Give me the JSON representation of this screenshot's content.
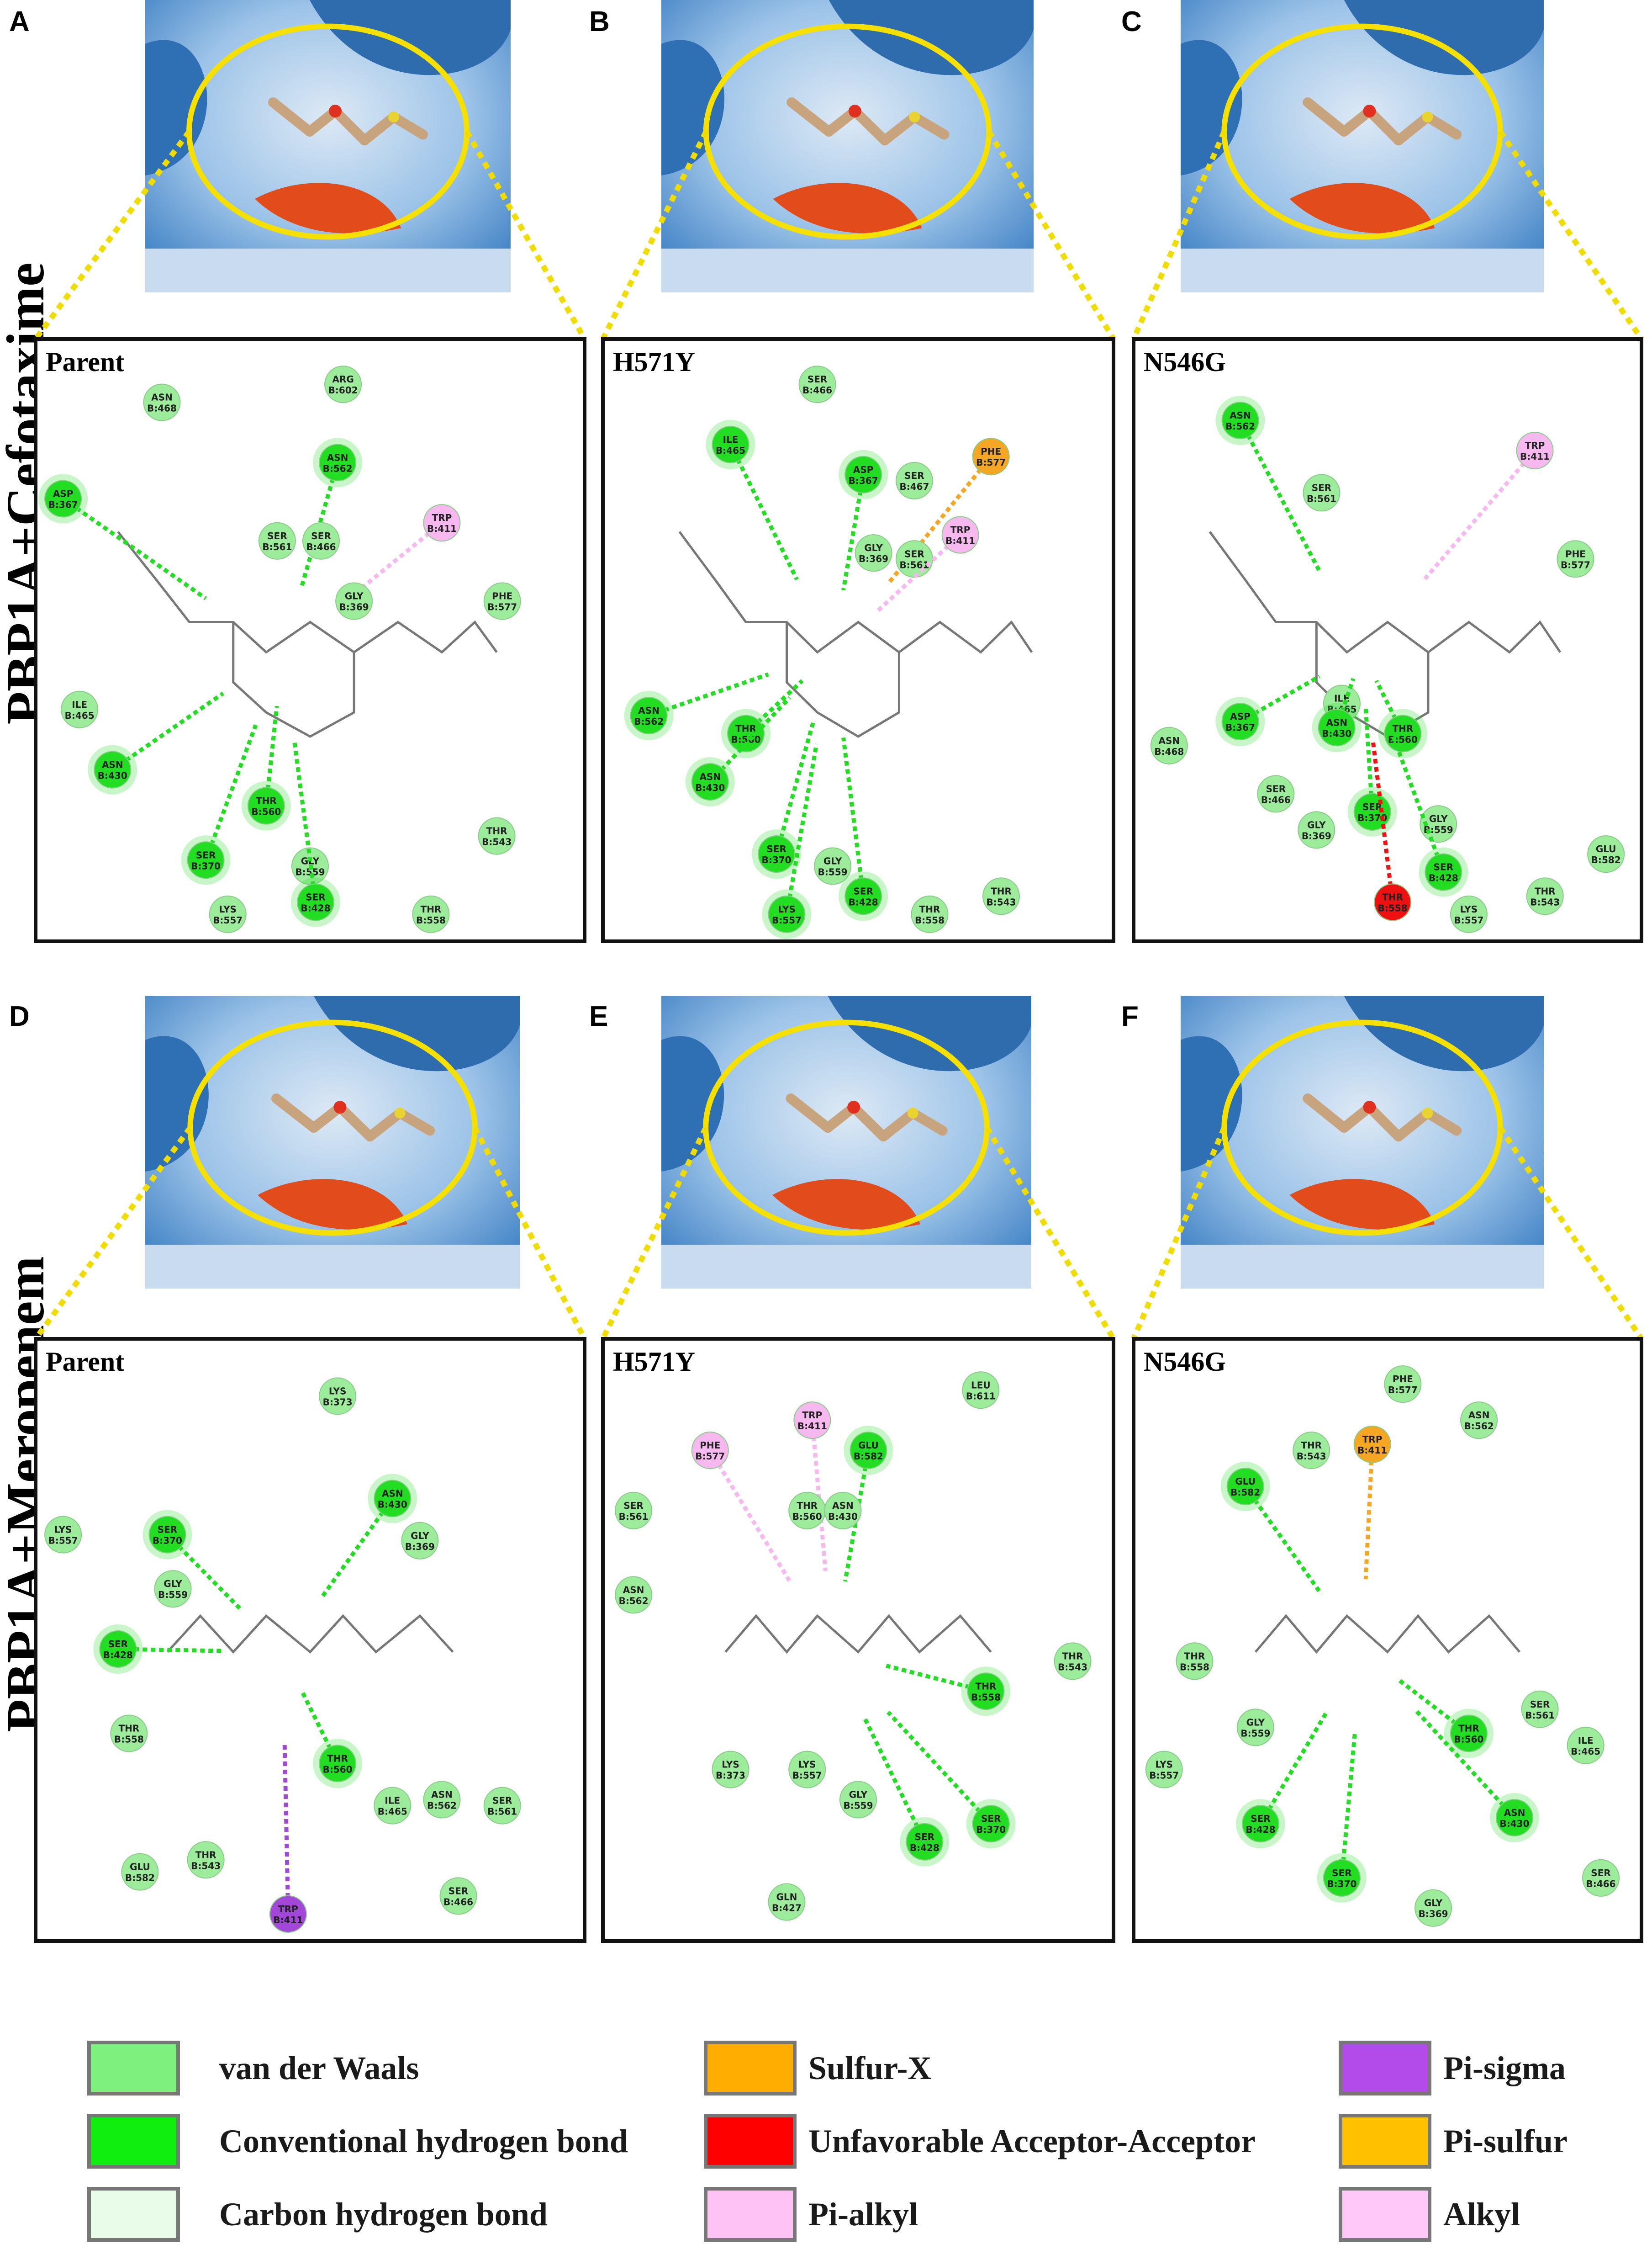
{
  "row_titles": [
    "PBP1A+Cefotaxime",
    "PBP1A+Meropenem"
  ],
  "panels": [
    {
      "letter": "A",
      "title": "Parent",
      "residues": [
        {
          "name": "ARG",
          "num": "B:602",
          "type": "vdw"
        },
        {
          "name": "ASN",
          "num": "B:468",
          "type": "vdw"
        },
        {
          "name": "ASN",
          "num": "B:562",
          "type": "hbond"
        },
        {
          "name": "ASP",
          "num": "B:367",
          "type": "hbond"
        },
        {
          "name": "SER",
          "num": "B:561",
          "type": "vdw"
        },
        {
          "name": "SER",
          "num": "B:466",
          "type": "vdw"
        },
        {
          "name": "TRP",
          "num": "B:411",
          "type": "pialkyl"
        },
        {
          "name": "GLY",
          "num": "B:369",
          "type": "vdw"
        },
        {
          "name": "PHE",
          "num": "B:577",
          "type": "vdw"
        },
        {
          "name": "ILE",
          "num": "B:465",
          "type": "vdw"
        },
        {
          "name": "ASN",
          "num": "B:430",
          "type": "hbond"
        },
        {
          "name": "THR",
          "num": "B:560",
          "type": "hbond"
        },
        {
          "name": "SER",
          "num": "B:370",
          "type": "hbond"
        },
        {
          "name": "GLY",
          "num": "B:559",
          "type": "vdw"
        },
        {
          "name": "SER",
          "num": "B:428",
          "type": "hbond"
        },
        {
          "name": "THR",
          "num": "B:543",
          "type": "vdw"
        },
        {
          "name": "THR",
          "num": "B:558",
          "type": "vdw"
        },
        {
          "name": "LYS",
          "num": "B:557",
          "type": "vdw"
        }
      ]
    },
    {
      "letter": "B",
      "title": "H571Y",
      "residues": [
        {
          "name": "SER",
          "num": "B:466",
          "type": "vdw"
        },
        {
          "name": "ILE",
          "num": "B:465",
          "type": "hbond"
        },
        {
          "name": "ASP",
          "num": "B:367",
          "type": "hbond"
        },
        {
          "name": "SER",
          "num": "B:467",
          "type": "vdw"
        },
        {
          "name": "PHE",
          "num": "B:577",
          "type": "sulfur"
        },
        {
          "name": "GLY",
          "num": "B:369",
          "type": "vdw"
        },
        {
          "name": "SER",
          "num": "B:561",
          "type": "vdw"
        },
        {
          "name": "TRP",
          "num": "B:411",
          "type": "pialkyl"
        },
        {
          "name": "ASN",
          "num": "B:562",
          "type": "hbond"
        },
        {
          "name": "THR",
          "num": "B:560",
          "type": "hbond"
        },
        {
          "name": "ASN",
          "num": "B:430",
          "type": "hbond"
        },
        {
          "name": "SER",
          "num": "B:370",
          "type": "hbond"
        },
        {
          "name": "GLY",
          "num": "B:559",
          "type": "vdw"
        },
        {
          "name": "SER",
          "num": "B:428",
          "type": "hbond"
        },
        {
          "name": "LYS",
          "num": "B:557",
          "type": "hbond"
        },
        {
          "name": "THR",
          "num": "B:558",
          "type": "vdw"
        },
        {
          "name": "THR",
          "num": "B:543",
          "type": "vdw"
        }
      ]
    },
    {
      "letter": "C",
      "title": "N546G",
      "residues": [
        {
          "name": "ASN",
          "num": "B:562",
          "type": "hbond"
        },
        {
          "name": "SER",
          "num": "B:561",
          "type": "vdw"
        },
        {
          "name": "TRP",
          "num": "B:411",
          "type": "pialkyl"
        },
        {
          "name": "PHE",
          "num": "B:577",
          "type": "vdw"
        },
        {
          "name": "ASP",
          "num": "B:367",
          "type": "hbond"
        },
        {
          "name": "ASN",
          "num": "B:468",
          "type": "vdw"
        },
        {
          "name": "ILE",
          "num": "B:465",
          "type": "vdw"
        },
        {
          "name": "ASN",
          "num": "B:430",
          "type": "hbond"
        },
        {
          "name": "THR",
          "num": "B:560",
          "type": "hbond"
        },
        {
          "name": "SER",
          "num": "B:466",
          "type": "vdw"
        },
        {
          "name": "GLY",
          "num": "B:369",
          "type": "vdw"
        },
        {
          "name": "SER",
          "num": "B:370",
          "type": "hbond"
        },
        {
          "name": "GLY",
          "num": "B:559",
          "type": "vdw"
        },
        {
          "name": "SER",
          "num": "B:428",
          "type": "hbond"
        },
        {
          "name": "GLU",
          "num": "B:582",
          "type": "vdw"
        },
        {
          "name": "THR",
          "num": "B:558",
          "type": "unfav"
        },
        {
          "name": "THR",
          "num": "B:543",
          "type": "vdw"
        },
        {
          "name": "LYS",
          "num": "B:557",
          "type": "vdw"
        }
      ]
    },
    {
      "letter": "D",
      "title": "Parent",
      "residues": [
        {
          "name": "LYS",
          "num": "B:373",
          "type": "vdw"
        },
        {
          "name": "ASN",
          "num": "B:430",
          "type": "hbond"
        },
        {
          "name": "LYS",
          "num": "B:557",
          "type": "vdw"
        },
        {
          "name": "SER",
          "num": "B:370",
          "type": "hbond"
        },
        {
          "name": "GLY",
          "num": "B:369",
          "type": "vdw"
        },
        {
          "name": "GLY",
          "num": "B:559",
          "type": "vdw"
        },
        {
          "name": "SER",
          "num": "B:428",
          "type": "hbond"
        },
        {
          "name": "THR",
          "num": "B:558",
          "type": "vdw"
        },
        {
          "name": "THR",
          "num": "B:560",
          "type": "hbond"
        },
        {
          "name": "ILE",
          "num": "B:465",
          "type": "vdw"
        },
        {
          "name": "ASN",
          "num": "B:562",
          "type": "vdw"
        },
        {
          "name": "SER",
          "num": "B:561",
          "type": "vdw"
        },
        {
          "name": "GLU",
          "num": "B:582",
          "type": "vdw"
        },
        {
          "name": "THR",
          "num": "B:543",
          "type": "vdw"
        },
        {
          "name": "TRP",
          "num": "B:411",
          "type": "pisigma"
        },
        {
          "name": "SER",
          "num": "B:466",
          "type": "vdw"
        }
      ]
    },
    {
      "letter": "E",
      "title": "H571Y",
      "residues": [
        {
          "name": "LEU",
          "num": "B:611",
          "type": "vdw"
        },
        {
          "name": "TRP",
          "num": "B:411",
          "type": "pialkyl"
        },
        {
          "name": "PHE",
          "num": "B:577",
          "type": "pialkyl"
        },
        {
          "name": "GLU",
          "num": "B:582",
          "type": "hbond"
        },
        {
          "name": "THR",
          "num": "B:560",
          "type": "vdw"
        },
        {
          "name": "ASN",
          "num": "B:430",
          "type": "vdw"
        },
        {
          "name": "SER",
          "num": "B:561",
          "type": "vdw"
        },
        {
          "name": "ASN",
          "num": "B:562",
          "type": "vdw"
        },
        {
          "name": "THR",
          "num": "B:543",
          "type": "vdw"
        },
        {
          "name": "THR",
          "num": "B:558",
          "type": "hbond"
        },
        {
          "name": "LYS",
          "num": "B:373",
          "type": "vdw"
        },
        {
          "name": "LYS",
          "num": "B:557",
          "type": "vdw"
        },
        {
          "name": "GLY",
          "num": "B:559",
          "type": "vdw"
        },
        {
          "name": "SER",
          "num": "B:428",
          "type": "hbond"
        },
        {
          "name": "SER",
          "num": "B:370",
          "type": "hbond"
        },
        {
          "name": "GLN",
          "num": "B:427",
          "type": "vdw"
        }
      ]
    },
    {
      "letter": "F",
      "title": "N546G",
      "residues": [
        {
          "name": "PHE",
          "num": "B:577",
          "type": "vdw"
        },
        {
          "name": "ASN",
          "num": "B:562",
          "type": "vdw"
        },
        {
          "name": "TRP",
          "num": "B:411",
          "type": "sulfur"
        },
        {
          "name": "THR",
          "num": "B:543",
          "type": "vdw"
        },
        {
          "name": "GLU",
          "num": "B:582",
          "type": "hbond"
        },
        {
          "name": "THR",
          "num": "B:558",
          "type": "vdw"
        },
        {
          "name": "SER",
          "num": "B:561",
          "type": "vdw"
        },
        {
          "name": "GLY",
          "num": "B:559",
          "type": "vdw"
        },
        {
          "name": "THR",
          "num": "B:560",
          "type": "hbond"
        },
        {
          "name": "ILE",
          "num": "B:465",
          "type": "vdw"
        },
        {
          "name": "LYS",
          "num": "B:557",
          "type": "vdw"
        },
        {
          "name": "SER",
          "num": "B:428",
          "type": "hbond"
        },
        {
          "name": "ASN",
          "num": "B:430",
          "type": "hbond"
        },
        {
          "name": "SER",
          "num": "B:370",
          "type": "hbond"
        },
        {
          "name": "SER",
          "num": "B:466",
          "type": "vdw"
        },
        {
          "name": "GLY",
          "num": "B:369",
          "type": "vdw"
        }
      ]
    }
  ],
  "legend": [
    {
      "label": "van der Waals",
      "color": "#7ef07e"
    },
    {
      "label": "Conventional hydrogen bond",
      "color": "#10ee10"
    },
    {
      "label": "Carbon hydrogen bond",
      "color": "#e9fbe9"
    },
    {
      "label": "Sulfur-X",
      "color": "#ffad00"
    },
    {
      "label": "Unfavorable Acceptor-Acceptor",
      "color": "#ff0000"
    },
    {
      "label": "Pi-alkyl",
      "color": "#ffc2f5"
    },
    {
      "label": "Pi-sigma",
      "color": "#b34bea"
    },
    {
      "label": "Pi-sulfur",
      "color": "#ffc000"
    },
    {
      "label": "Alkyl",
      "color": "#ffc8f8"
    }
  ],
  "interaction_colors": {
    "vdw": "#9cec9c",
    "hbond": "#22dd22",
    "chbond": "#dcf7dc",
    "sulfur": "#f5a623",
    "unfav": "#ee1111",
    "pialkyl": "#f7b8ef",
    "pisigma": "#a347d8"
  }
}
